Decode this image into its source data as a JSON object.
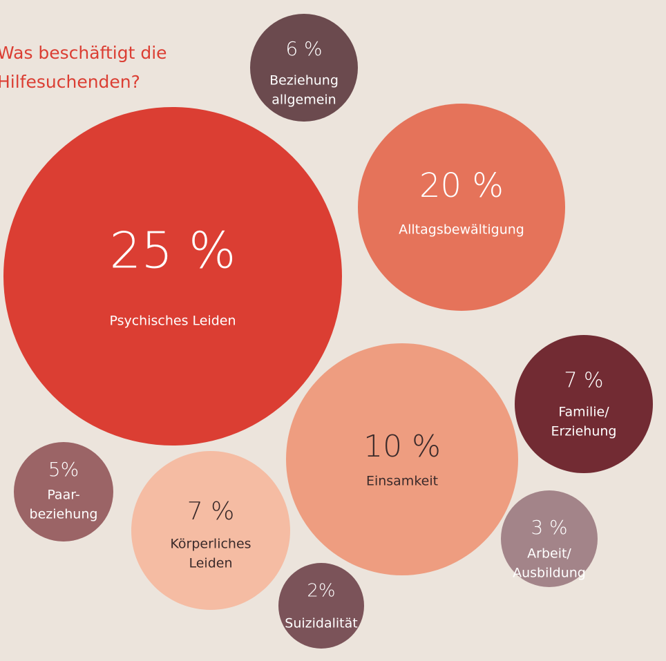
{
  "chart_data": {
    "type": "bubble",
    "title": [
      "Was beschäftigt die",
      "Hilfesuchenden?"
    ],
    "categories": [
      [
        "Psychisches Leiden"
      ],
      [
        "Alltagsbewältigung"
      ],
      [
        "Beziehung",
        "allgemein"
      ],
      [
        "Familie/",
        "Erziehung"
      ],
      [
        "Einsamkeit"
      ],
      [
        "Paar-",
        "beziehung"
      ],
      [
        "Körperliches",
        "Leiden"
      ],
      [
        "Arbeit/",
        "Ausbildung"
      ],
      [
        "Suizidalität"
      ]
    ],
    "values": [
      25,
      20,
      6,
      7,
      10,
      5,
      7,
      3,
      2
    ],
    "value_labels": [
      "25 %",
      "20 %",
      "6 %",
      "7 %",
      "10 %",
      "5%",
      "7 %",
      "3 %",
      "2%"
    ],
    "colors": [
      "#db3e33",
      "#e5735a",
      "#6b4a4e",
      "#722b33",
      "#ee9d80",
      "#9b6466",
      "#f5bca3",
      "#a38489",
      "#7b5359"
    ]
  }
}
